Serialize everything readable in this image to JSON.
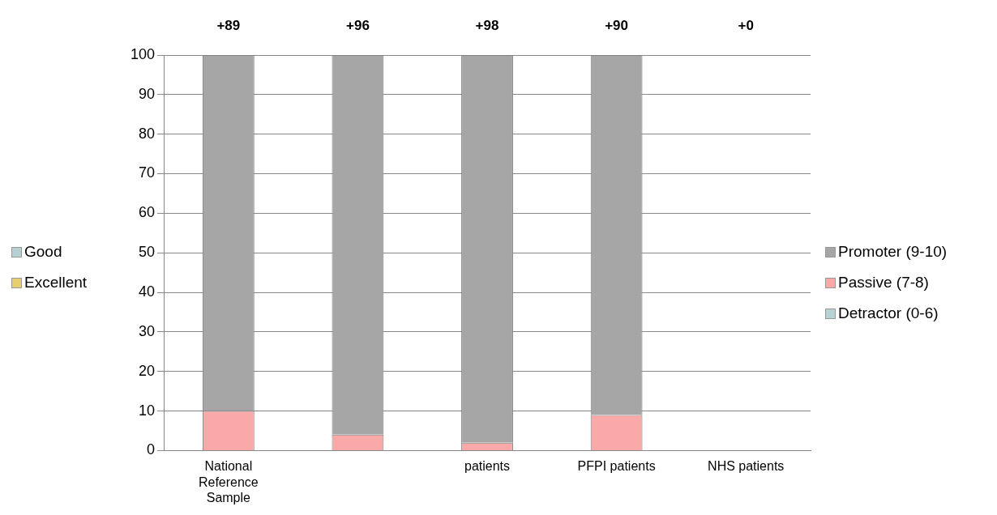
{
  "chart_data": {
    "type": "bar",
    "stacked": true,
    "categories": [
      "National Reference Sample",
      null,
      "patients",
      "PFPI patients",
      "NHS patients"
    ],
    "series": [
      {
        "name": "Good",
        "color": "#b6d0d3",
        "values": [
          null,
          null,
          null,
          null,
          null
        ]
      },
      {
        "name": "Excellent",
        "color": "#e6cf6e",
        "values": [
          null,
          null,
          null,
          null,
          null
        ]
      },
      {
        "name": "Detractor (0-6)",
        "color": "#b7d3d6",
        "values": [
          0,
          0,
          0,
          0,
          0
        ]
      },
      {
        "name": "Passive (7-8)",
        "color": "#f9aaa8",
        "values": [
          10,
          4,
          2,
          9,
          0
        ]
      },
      {
        "name": "Promoter (9-10)",
        "color": "#a6a6a6",
        "values": [
          90,
          96,
          98,
          91,
          0
        ]
      }
    ],
    "ylim": [
      0,
      100
    ],
    "yticks": [
      0,
      10,
      20,
      30,
      40,
      50,
      60,
      70,
      80,
      90,
      100
    ],
    "grid": "y",
    "legend": "right",
    "annotations": [
      "+89",
      "+96",
      "+98",
      "+90",
      "+0"
    ]
  }
}
